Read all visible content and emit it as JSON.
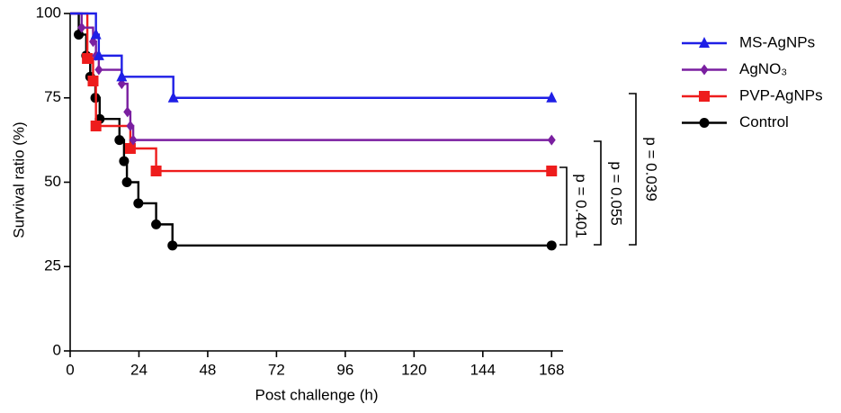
{
  "chart_data": {
    "type": "step",
    "xlabel": "Post challenge (h)",
    "ylabel": "Survival ratio (%)",
    "xlim": [
      0,
      172
    ],
    "ylim": [
      0,
      100
    ],
    "xticks": [
      0,
      24,
      48,
      72,
      96,
      120,
      144,
      168
    ],
    "yticks": [
      0,
      25,
      50,
      75,
      100
    ],
    "legend": "upper right",
    "series": [
      {
        "name": "MS-AgNPs",
        "color": "#1f1fe6",
        "marker": "triangle",
        "x": [
          0,
          9,
          10,
          18,
          36,
          168
        ],
        "values": [
          100,
          93.75,
          87.5,
          81.25,
          75,
          75
        ]
      },
      {
        "name": "AgNO₃",
        "color": "#7a1fa0",
        "marker": "diamond",
        "x": [
          0,
          4,
          8,
          9,
          10,
          18,
          20,
          21,
          22,
          168
        ],
        "values": [
          100,
          95.83,
          91.67,
          87.5,
          83.33,
          79.17,
          70.83,
          66.67,
          62.5,
          62.5
        ]
      },
      {
        "name": "PVP-AgNPs",
        "color": "#ee1c1c",
        "marker": "square",
        "x": [
          0,
          6,
          8,
          9,
          21,
          30,
          168
        ],
        "values": [
          100,
          86.67,
          80,
          66.67,
          60,
          53.33,
          53.33
        ]
      },
      {
        "name": "Control",
        "color": "#000000",
        "marker": "circle",
        "x": [
          0,
          3,
          5.6,
          7,
          8.8,
          10.3,
          17.2,
          18.8,
          19.8,
          23.8,
          30,
          35.7,
          168
        ],
        "values": [
          100,
          93.75,
          87.5,
          81.25,
          75,
          68.75,
          62.5,
          56.25,
          50,
          43.75,
          37.5,
          31.25,
          31.25
        ]
      }
    ],
    "annotations": [
      "p = 0.401",
      "p = 0.055",
      "p = 0.039"
    ]
  }
}
